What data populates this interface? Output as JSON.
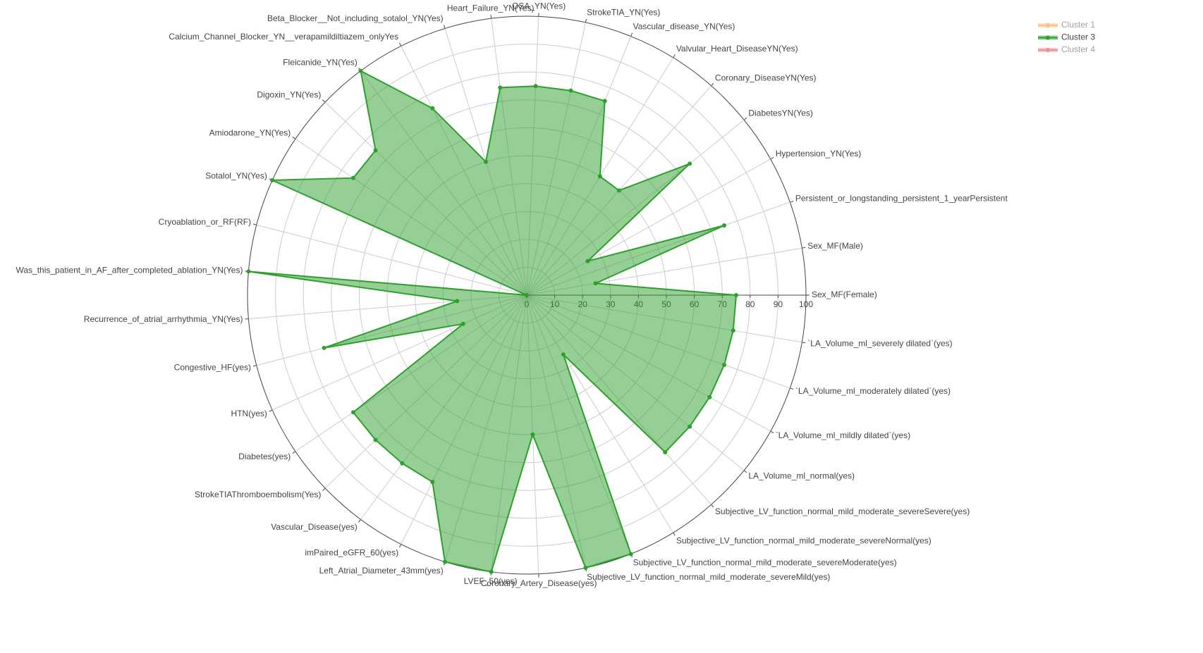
{
  "chart_data": {
    "type": "radar",
    "categories": [
      "Sex_MF(Female)",
      "Sex_MF(Male)",
      "Persistent_or_longstanding_persistent_1_yearPersistent",
      "Hypertension_YN(Yes)",
      "DiabetesYN(Yes)",
      "Coronary_DiseaseYN(Yes)",
      "Valvular_Heart_DiseaseYN(Yes)",
      "Vascular_disease_YN(Yes)",
      "StrokeTIA_YN(Yes)",
      "OSA_YN(Yes)",
      "Heart_Failure_YN(Yes)",
      "Beta_Blocker__Not_including_sotalol_YN(Yes)",
      "Calcium_Channel_Blocker_YN__verapamildiltiazem_onlyYes",
      "Fleicanide_YN(Yes)",
      "Digoxin_YN(Yes)",
      "Amiodarone_YN(Yes)",
      "Sotalol_YN(Yes)",
      "Cryoablation_or_RF(RF)",
      "Was_this_patient_in_AF_after_completed_ablation_YN(Yes)",
      "Recurrence_of_atrial_arrhythmia_YN(Yes)",
      "Congestive_HF(yes)",
      "HTN(yes)",
      "Diabetes(yes)",
      "StrokeTIAThromboembolism(Yes)",
      "Vascular_Disease(yes)",
      "imPaired_eGFR_60(yes)",
      "Left_Atrial_Diameter_43mm(yes)",
      "LVEF_50(yes)",
      "Coronary_Artery_Disease(yes)",
      "Subjective_LV_function_normal_mild_moderate_severeMild(yes)",
      "Subjective_LV_function_normal_mild_moderate_severeModerate(yes)",
      "Subjective_LV_function_normal_mild_moderate_severeNormal(yes)",
      "Subjective_LV_function_normal_mild_moderate_severeSevere(yes)",
      "LA_Volume_ml_normal(yes)",
      "`LA_Volume_ml_mildly dilated`(yes)",
      "`LA_Volume_ml_moderately dilated`(yes)",
      "`LA_Volume_ml_severely dilated`(yes)"
    ],
    "series": [
      {
        "name": "Cluster 1",
        "color": "#ff7f0e",
        "visible": false
      },
      {
        "name": "Cluster 3",
        "color": "#2ca02c",
        "visible": true,
        "values": [
          75,
          25,
          75,
          25,
          75,
          50,
          50,
          75,
          75,
          75,
          75,
          50,
          75,
          100,
          75,
          75,
          100,
          0,
          100,
          25,
          75,
          25,
          75,
          75,
          75,
          75,
          100,
          100,
          50,
          100,
          100,
          25,
          75,
          75,
          75,
          75,
          75
        ]
      },
      {
        "name": "Cluster 4",
        "color": "#d62728",
        "visible": false
      }
    ],
    "ylim": [
      0,
      100
    ],
    "yticks": [
      0,
      10,
      20,
      30,
      40,
      50,
      60,
      70,
      80,
      90,
      100
    ],
    "grid": true,
    "legend": "top-right"
  }
}
